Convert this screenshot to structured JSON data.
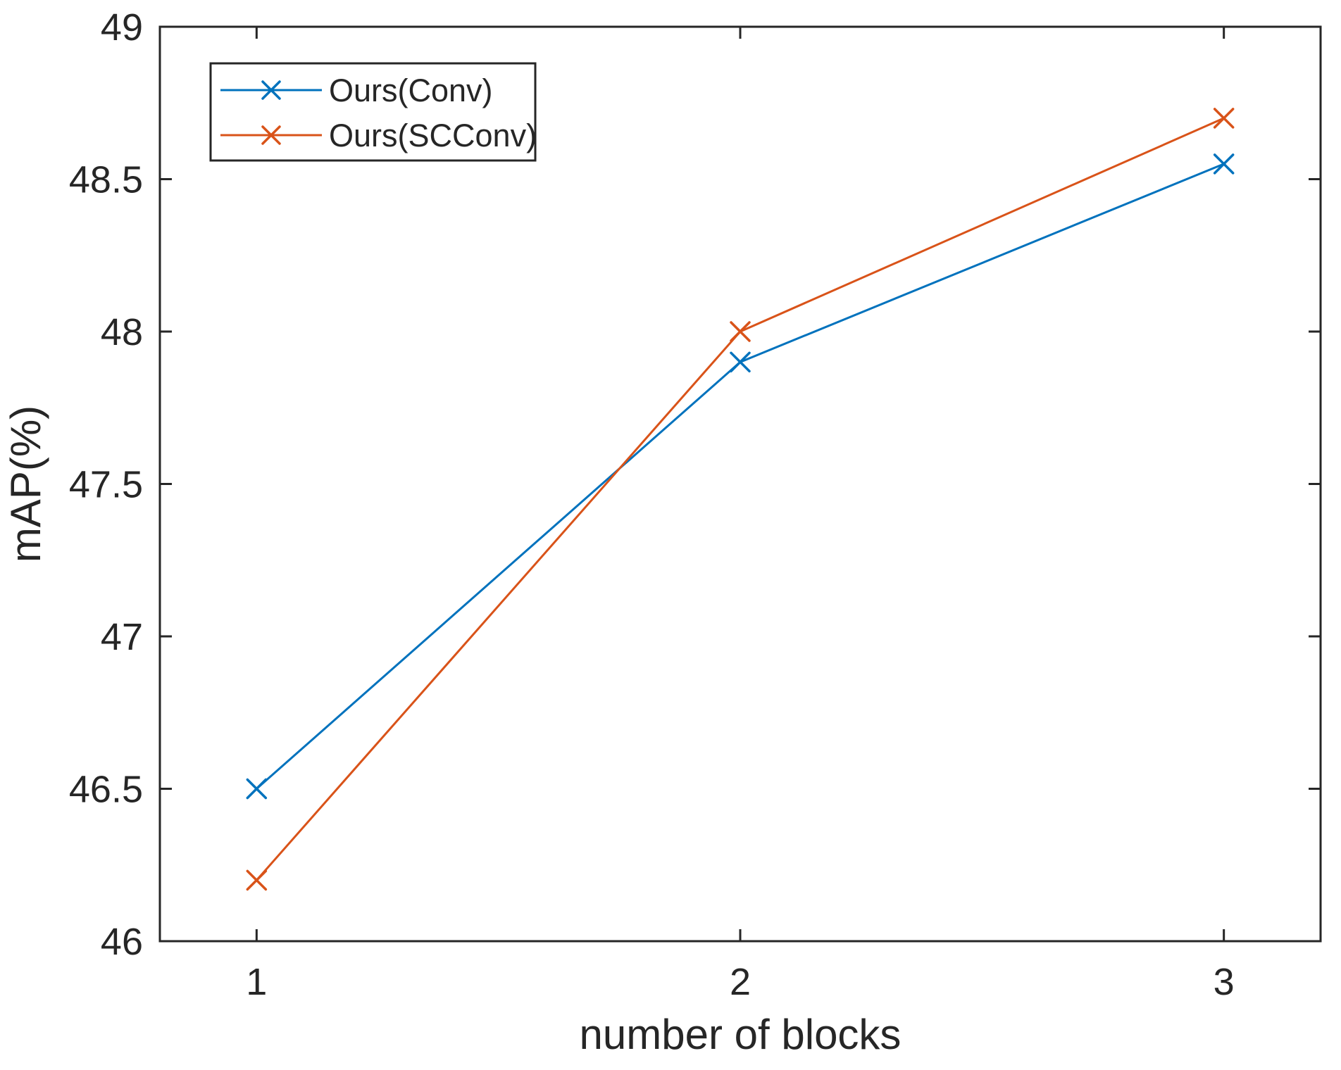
{
  "chart_data": {
    "type": "line",
    "title": "",
    "xlabel": "number of blocks",
    "ylabel": "mAP(%)",
    "x": [
      1,
      2,
      3
    ],
    "xlim": [
      0.8,
      3.2
    ],
    "ylim": [
      46,
      49
    ],
    "xticks": [
      1,
      2,
      3
    ],
    "xtick_labels": [
      "1",
      "2",
      "3"
    ],
    "yticks": [
      46,
      46.5,
      47,
      47.5,
      48,
      48.5,
      49
    ],
    "ytick_labels": [
      "46",
      "46.5",
      "47",
      "47.5",
      "48",
      "48.5",
      "49"
    ],
    "grid": false,
    "box": true,
    "tick_direction": "in",
    "legend": {
      "position": "top-left",
      "entries": [
        {
          "label": "Ours(Conv)",
          "color": "#0072BD",
          "marker": "x"
        },
        {
          "label": "Ours(SCConv)",
          "color": "#D95319",
          "marker": "x"
        }
      ]
    },
    "series": [
      {
        "name": "Ours(Conv)",
        "color": "#0072BD",
        "marker": "x",
        "values": [
          46.5,
          47.9,
          48.55
        ]
      },
      {
        "name": "Ours(SCConv)",
        "color": "#D95319",
        "marker": "x",
        "values": [
          46.2,
          48.0,
          48.7
        ]
      }
    ],
    "colors": {
      "axis": "#262626",
      "text": "#262626",
      "background": "#ffffff"
    }
  }
}
